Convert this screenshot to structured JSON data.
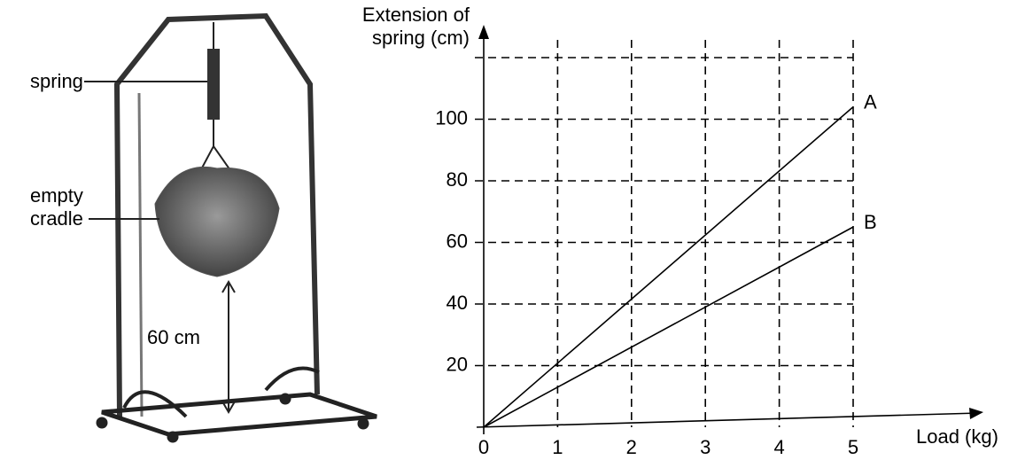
{
  "figure": {
    "labels": [
      "spring",
      "empty cradle",
      "60 cm"
    ]
  },
  "chart_data": {
    "type": "line",
    "x_label": "Load (kg)",
    "y_label": "Extension of spring (cm)",
    "x": [
      0,
      5
    ],
    "series": [
      {
        "name": "A",
        "color": "#000000",
        "values": [
          0,
          104
        ]
      },
      {
        "name": "B",
        "color": "#000000",
        "values": [
          0,
          65
        ]
      }
    ],
    "xlim": [
      0,
      5
    ],
    "xticks": [
      0,
      1,
      2,
      3,
      4,
      5
    ],
    "ylim": [
      0,
      120
    ],
    "yticks": [
      20,
      40,
      60,
      80,
      100
    ],
    "grid": true
  }
}
